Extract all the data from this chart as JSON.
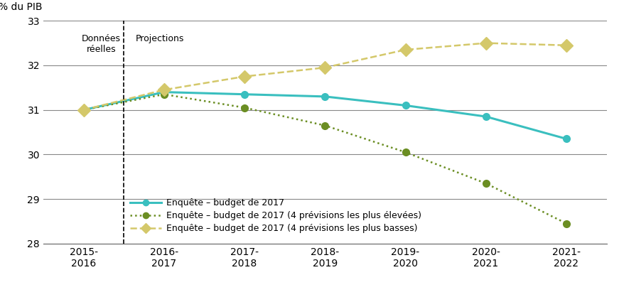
{
  "x_labels": [
    "2015-\n2016",
    "2016-\n2017",
    "2017-\n2018",
    "2018-\n2019",
    "2019-\n2020",
    "2020-\n2021",
    "2021-\n2022"
  ],
  "x_values": [
    0,
    1,
    2,
    3,
    4,
    5,
    6
  ],
  "teal_line": [
    31.0,
    31.4,
    31.35,
    31.3,
    31.1,
    30.85,
    30.35
  ],
  "green_dotted": [
    31.0,
    31.35,
    31.05,
    30.65,
    30.05,
    29.35,
    28.45
  ],
  "yellow_dashed": [
    31.0,
    31.45,
    31.75,
    31.95,
    32.35,
    32.5,
    32.45
  ],
  "teal_color": "#3ABFBF",
  "green_color": "#6B8E23",
  "yellow_color": "#D4C86A",
  "ylabel_top": "% du PIB",
  "ylim": [
    28,
    33
  ],
  "yticks": [
    28,
    29,
    30,
    31,
    32,
    33
  ],
  "dashed_line_x": 0.5,
  "annotation_left": "Données\nréelles",
  "annotation_right": "Projections",
  "legend1": "Enquête – budget de 2017",
  "legend2": "Enquête – budget de 2017 (4 prévisions les plus élevées)",
  "legend3": "Enquête – budget de 2017 (4 prévisions les plus basses)"
}
